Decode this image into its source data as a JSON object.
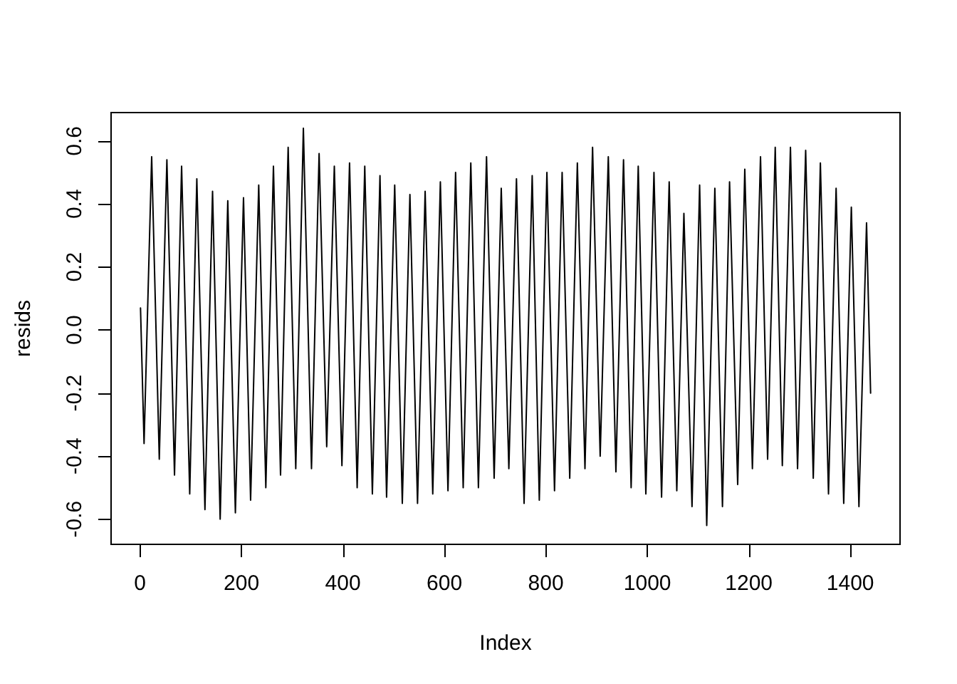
{
  "chart_data": {
    "type": "line",
    "xlabel": "Index",
    "ylabel": "resids",
    "color": "#000000",
    "marker": "none",
    "line_style": "solid",
    "grid": false,
    "x": [
      1,
      8,
      23,
      38,
      53,
      68,
      82,
      98,
      112,
      128,
      143,
      158,
      173,
      188,
      204,
      218,
      234,
      248,
      263,
      277,
      292,
      307,
      322,
      338,
      353,
      368,
      383,
      398,
      413,
      428,
      443,
      458,
      473,
      486,
      502,
      517,
      532,
      547,
      562,
      577,
      592,
      607,
      622,
      637,
      652,
      667,
      683,
      698,
      712,
      727,
      742,
      757,
      773,
      787,
      802,
      817,
      832,
      847,
      862,
      877,
      892,
      907,
      923,
      938,
      953,
      968,
      982,
      997,
      1013,
      1028,
      1043,
      1058,
      1072,
      1088,
      1103,
      1117,
      1133,
      1148,
      1162,
      1178,
      1192,
      1207,
      1223,
      1237,
      1252,
      1266,
      1282,
      1296,
      1312,
      1327,
      1341,
      1357,
      1372,
      1387,
      1402,
      1417,
      1432,
      1440
    ],
    "values": [
      0.07,
      -0.36,
      0.55,
      -0.41,
      0.54,
      -0.46,
      0.52,
      -0.52,
      0.48,
      -0.57,
      0.44,
      -0.6,
      0.41,
      -0.58,
      0.42,
      -0.54,
      0.46,
      -0.5,
      0.52,
      -0.46,
      0.58,
      -0.44,
      0.64,
      -0.44,
      0.56,
      -0.37,
      0.52,
      -0.43,
      0.53,
      -0.5,
      0.52,
      -0.52,
      0.49,
      -0.53,
      0.46,
      -0.55,
      0.43,
      -0.55,
      0.44,
      -0.52,
      0.47,
      -0.51,
      0.5,
      -0.5,
      0.53,
      -0.5,
      0.55,
      -0.47,
      0.45,
      -0.44,
      0.48,
      -0.55,
      0.49,
      -0.54,
      0.5,
      -0.51,
      0.5,
      -0.47,
      0.53,
      -0.44,
      0.58,
      -0.4,
      0.55,
      -0.45,
      0.54,
      -0.5,
      0.52,
      -0.52,
      0.5,
      -0.53,
      0.47,
      -0.51,
      0.37,
      -0.56,
      0.46,
      -0.62,
      0.45,
      -0.56,
      0.47,
      -0.49,
      0.51,
      -0.44,
      0.55,
      -0.41,
      0.58,
      -0.43,
      0.58,
      -0.44,
      0.57,
      -0.47,
      0.53,
      -0.52,
      0.45,
      -0.55,
      0.39,
      -0.56,
      0.34,
      -0.2
    ],
    "xlim": [
      -57,
      1498
    ],
    "ylim": [
      -0.68,
      0.69
    ],
    "xticks": [
      0,
      200,
      400,
      600,
      800,
      1000,
      1200,
      1400
    ],
    "yticks": [
      -0.6,
      -0.4,
      -0.2,
      {
        "value": 0,
        "label": "0.0"
      },
      0.2,
      0.4,
      0.6
    ]
  }
}
